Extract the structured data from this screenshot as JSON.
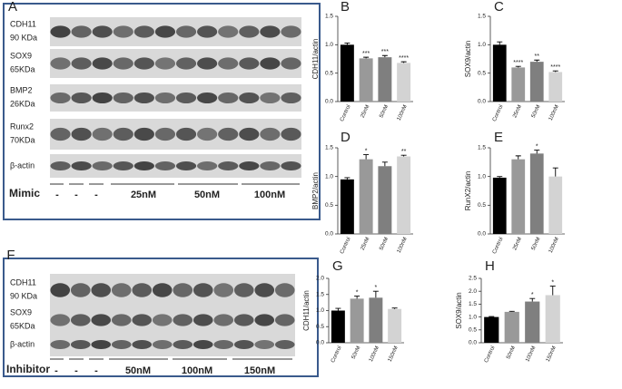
{
  "chart_data": [
    {
      "type": "bar",
      "panel": "B",
      "ylabel": "CDH11/actin",
      "categories": [
        "Control",
        "25nM",
        "50nM",
        "100nM"
      ],
      "values": [
        1.0,
        0.76,
        0.78,
        0.68
      ],
      "errors": [
        0.03,
        0.02,
        0.03,
        0.02
      ],
      "annotations": [
        null,
        "***",
        "***",
        "****"
      ],
      "colors": [
        "#000000",
        "#999999",
        "#7f7f7f",
        "#d3d3d3"
      ],
      "ylim": [
        0,
        1.5
      ],
      "yticks": [
        {
          "value": 0,
          "label": "0.0"
        },
        0.5,
        {
          "value": 1,
          "label": "1.0"
        },
        1.5
      ]
    },
    {
      "type": "bar",
      "panel": "C",
      "ylabel": "SOX9/actin",
      "categories": [
        "Control",
        "25nM",
        "50nM",
        "100nM"
      ],
      "values": [
        1.0,
        0.6,
        0.7,
        0.52
      ],
      "errors": [
        0.05,
        0.02,
        0.03,
        0.02
      ],
      "annotations": [
        null,
        "****",
        "**",
        "****"
      ],
      "colors": [
        "#000000",
        "#999999",
        "#7f7f7f",
        "#d3d3d3"
      ],
      "ylim": [
        0,
        1.5
      ],
      "yticks": [
        {
          "value": 0,
          "label": "0.0"
        },
        0.5,
        {
          "value": 1,
          "label": "1.0"
        },
        1.5
      ]
    },
    {
      "type": "bar",
      "panel": "D",
      "ylabel": "BMP2/actin",
      "categories": [
        "Control",
        "25nM",
        "50nM",
        "100nM"
      ],
      "values": [
        0.95,
        1.3,
        1.18,
        1.35
      ],
      "errors": [
        0.03,
        0.08,
        0.07,
        0.02
      ],
      "annotations": [
        null,
        "*",
        null,
        "**"
      ],
      "colors": [
        "#000000",
        "#999999",
        "#7f7f7f",
        "#d3d3d3"
      ],
      "ylim": [
        0,
        1.5
      ],
      "yticks": [
        {
          "value": 0,
          "label": "0.0"
        },
        0.5,
        {
          "value": 1,
          "label": "1.0"
        },
        1.5
      ]
    },
    {
      "type": "bar",
      "panel": "E",
      "ylabel": "RunX2/actin",
      "categories": [
        "Control",
        "25nM",
        "50nM",
        "100nM"
      ],
      "values": [
        0.98,
        1.3,
        1.4,
        1.0
      ],
      "errors": [
        0.02,
        0.06,
        0.06,
        0.15
      ],
      "annotations": [
        null,
        null,
        "*",
        null
      ],
      "colors": [
        "#000000",
        "#999999",
        "#7f7f7f",
        "#d3d3d3"
      ],
      "ylim": [
        0,
        1.5
      ],
      "yticks": [
        {
          "value": 0,
          "label": "0.0"
        },
        0.5,
        {
          "value": 1,
          "label": "1.0"
        },
        1.5
      ]
    },
    {
      "type": "bar",
      "panel": "G",
      "ylabel": "CDH11/actin",
      "categories": [
        "Control",
        "50nM",
        "100nM",
        "150nM"
      ],
      "values": [
        1.0,
        1.37,
        1.4,
        1.05
      ],
      "errors": [
        0.07,
        0.08,
        0.2,
        0.03
      ],
      "annotations": [
        null,
        "*",
        "*",
        null
      ],
      "colors": [
        "#000000",
        "#999999",
        "#7f7f7f",
        "#d3d3d3"
      ],
      "ylim": [
        0,
        2
      ],
      "yticks": [
        {
          "value": 0,
          "label": "0.0"
        },
        0.5,
        {
          "value": 1,
          "label": "1.0"
        },
        1.5,
        {
          "value": 2,
          "label": "2.0"
        }
      ]
    },
    {
      "type": "bar",
      "panel": "H",
      "ylabel": "SOX9/actin",
      "categories": [
        "Control",
        "50nM",
        "100nM",
        "150nM"
      ],
      "values": [
        1.0,
        1.2,
        1.6,
        1.85
      ],
      "errors": [
        0.02,
        0.02,
        0.12,
        0.35
      ],
      "annotations": [
        null,
        null,
        "*",
        "*"
      ],
      "colors": [
        "#000000",
        "#999999",
        "#7f7f7f",
        "#d3d3d3"
      ],
      "ylim": [
        0,
        2.5
      ],
      "yticks": [
        {
          "value": 0,
          "label": "0.0"
        },
        0.5,
        {
          "value": 1,
          "label": "1.0"
        },
        1.5,
        {
          "value": 2,
          "label": "2.0"
        },
        2.5
      ]
    }
  ],
  "blots": [
    {
      "panel": "A",
      "rows": [
        {
          "protein": "CDH11",
          "size": "90 KDa"
        },
        {
          "protein": "SOX9",
          "size": "65KDa"
        },
        {
          "protein": "BMP2",
          "size": "26KDa"
        },
        {
          "protein": "Runx2",
          "size": "70KDa"
        },
        {
          "protein": "β-actin"
        }
      ],
      "treatment": "Mimic",
      "groups": [
        "-",
        "-",
        "-",
        "25nM",
        "50nM",
        "100nM"
      ]
    },
    {
      "panel": "F",
      "rows": [
        {
          "protein": "CDH11",
          "size": "90 KDa"
        },
        {
          "protein": "SOX9",
          "size": "65KDa"
        },
        {
          "protein": "β-actin"
        }
      ],
      "treatment": "Inhibitor",
      "groups": [
        "-",
        "-",
        "-",
        "50nM",
        "100nM",
        "150nM"
      ]
    }
  ]
}
